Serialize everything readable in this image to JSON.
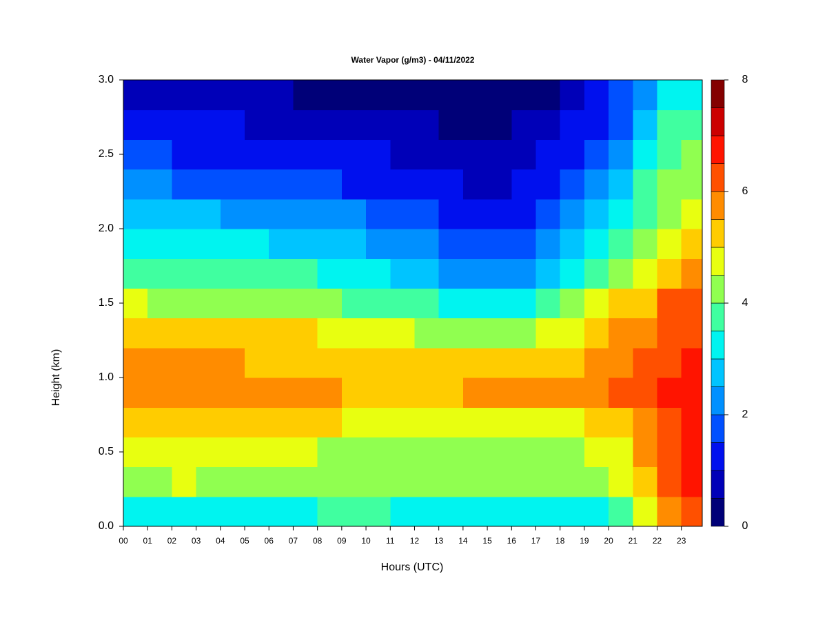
{
  "chart_data": {
    "type": "heatmap",
    "title": "Water Vapor (g/m3) - 04/11/2022",
    "x_label": "Hours (UTC)",
    "y_label": "Height (km)",
    "x": [
      0.5,
      1.5,
      2.5,
      3.5,
      4.5,
      5.5,
      6.5,
      7.5,
      8.5,
      9.5,
      10.5,
      11.5,
      12.5,
      13.5,
      14.5,
      15.5,
      16.5,
      17.5,
      18.5,
      19.5,
      20.5,
      21.5,
      22.5,
      23.5
    ],
    "y": [
      0.1,
      0.3,
      0.5,
      0.7,
      0.9,
      1.1,
      1.3,
      1.5,
      1.7,
      1.9,
      2.1,
      2.3,
      2.5,
      2.7,
      2.9
    ],
    "z": [
      [
        3.2,
        3.3,
        3.4,
        3.4,
        3.3,
        3.3,
        3.3,
        3.4,
        3.6,
        3.6,
        3.5,
        3.4,
        3.3,
        3.3,
        3.3,
        3.3,
        3.2,
        3.2,
        3.3,
        3.3,
        3.8,
        4.6,
        5.8,
        6.3
      ],
      [
        4.4,
        4.3,
        4.6,
        4.2,
        4.1,
        4.2,
        4.3,
        4.2,
        4.3,
        4.2,
        4.1,
        4.1,
        4.2,
        4.2,
        4.1,
        4.2,
        4.2,
        4.1,
        4.1,
        4.2,
        4.6,
        5.4,
        6.3,
        6.7
      ],
      [
        4.6,
        4.5,
        4.6,
        4.5,
        4.6,
        4.6,
        4.7,
        4.6,
        4.4,
        4.3,
        4.3,
        4.2,
        4.3,
        4.3,
        4.3,
        4.3,
        4.3,
        4.3,
        4.4,
        4.5,
        4.8,
        5.6,
        6.4,
        6.6
      ],
      [
        5.0,
        5.0,
        5.1,
        5.0,
        5.1,
        5.0,
        5.0,
        5.0,
        5.0,
        4.9,
        4.9,
        4.8,
        4.8,
        4.8,
        4.9,
        4.9,
        4.8,
        4.8,
        4.9,
        5.0,
        5.3,
        5.8,
        6.3,
        6.5
      ],
      [
        5.8,
        5.6,
        5.6,
        5.5,
        5.5,
        5.5,
        5.5,
        5.5,
        5.6,
        5.4,
        5.3,
        5.3,
        5.4,
        5.4,
        5.6,
        5.6,
        5.5,
        5.6,
        5.5,
        5.6,
        6.0,
        6.1,
        6.5,
        6.7
      ],
      [
        5.8,
        5.7,
        5.6,
        5.5,
        5.5,
        5.4,
        5.4,
        5.4,
        5.4,
        5.3,
        5.2,
        5.1,
        5.2,
        5.2,
        5.2,
        5.2,
        5.2,
        5.3,
        5.3,
        5.5,
        5.9,
        6.0,
        6.4,
        6.5
      ],
      [
        5.3,
        5.2,
        5.1,
        5.1,
        5.1,
        5.0,
        5.0,
        5.0,
        4.9,
        4.8,
        4.6,
        4.5,
        4.4,
        4.3,
        4.3,
        4.3,
        4.4,
        4.5,
        4.8,
        5.2,
        5.6,
        5.7,
        6.2,
        6.3
      ],
      [
        4.5,
        4.4,
        4.4,
        4.4,
        4.4,
        4.3,
        4.3,
        4.2,
        4.0,
        3.8,
        3.7,
        3.6,
        3.5,
        3.4,
        3.3,
        3.3,
        3.4,
        3.6,
        4.0,
        4.5,
        5.0,
        5.4,
        6.0,
        6.2
      ],
      [
        3.8,
        3.7,
        3.7,
        3.7,
        3.7,
        3.7,
        3.6,
        3.5,
        3.3,
        3.1,
        3.0,
        2.8,
        2.6,
        2.4,
        2.2,
        2.2,
        2.4,
        2.8,
        3.2,
        3.8,
        4.4,
        4.8,
        5.2,
        5.5
      ],
      [
        3.1,
        3.1,
        3.0,
        3.0,
        3.0,
        3.0,
        2.9,
        2.8,
        2.7,
        2.5,
        2.4,
        2.2,
        2.0,
        1.8,
        1.7,
        1.7,
        1.8,
        2.1,
        2.7,
        3.2,
        3.8,
        4.2,
        4.6,
        5.0
      ],
      [
        2.6,
        2.6,
        2.5,
        2.5,
        2.4,
        2.4,
        2.3,
        2.2,
        2.1,
        2.0,
        1.9,
        1.7,
        1.5,
        1.3,
        1.2,
        1.2,
        1.4,
        1.7,
        2.2,
        2.7,
        3.4,
        3.9,
        4.2,
        4.6
      ],
      [
        2.1,
        2.0,
        1.9,
        1.9,
        1.8,
        1.7,
        1.7,
        1.6,
        1.5,
        1.4,
        1.3,
        1.2,
        1.1,
        1.0,
        0.9,
        0.9,
        1.0,
        1.3,
        1.7,
        2.2,
        2.8,
        3.5,
        4.0,
        4.3
      ],
      [
        1.6,
        1.5,
        1.4,
        1.4,
        1.3,
        1.3,
        1.2,
        1.2,
        1.1,
        1.1,
        1.0,
        0.9,
        0.8,
        0.6,
        0.5,
        0.6,
        0.8,
        1.0,
        1.3,
        1.8,
        2.3,
        3.0,
        3.8,
        4.1
      ],
      [
        1.1,
        1.1,
        1.0,
        1.0,
        1.0,
        0.9,
        0.9,
        0.9,
        0.8,
        0.8,
        0.7,
        0.6,
        0.5,
        0.4,
        0.4,
        0.4,
        0.5,
        0.7,
        1.0,
        1.4,
        1.9,
        2.6,
        3.5,
        3.8
      ],
      [
        0.7,
        0.7,
        0.7,
        0.6,
        0.6,
        0.5,
        0.5,
        0.4,
        0.4,
        0.4,
        0.4,
        0.4,
        0.3,
        0.3,
        0.3,
        0.3,
        0.3,
        0.4,
        0.7,
        1.1,
        1.5,
        2.2,
        3.2,
        3.4
      ]
    ],
    "xlim": [
      0,
      23.86
    ],
    "xticks": [
      {
        "value": 0,
        "label": "00"
      },
      {
        "value": 1,
        "label": "01"
      },
      {
        "value": 2,
        "label": "02"
      },
      {
        "value": 3,
        "label": "03"
      },
      {
        "value": 4,
        "label": "04"
      },
      {
        "value": 5,
        "label": "05"
      },
      {
        "value": 6,
        "label": "06"
      },
      {
        "value": 7,
        "label": "07"
      },
      {
        "value": 8,
        "label": "08"
      },
      {
        "value": 9,
        "label": "09"
      },
      10,
      11,
      12,
      13,
      14,
      15,
      16,
      17,
      18,
      19,
      20,
      21,
      22,
      23
    ],
    "ylim": [
      0,
      3
    ],
    "yticks": [
      {
        "value": 0,
        "label": "0.0"
      },
      0.5,
      {
        "value": 1,
        "label": "1.0"
      },
      1.5,
      {
        "value": 2,
        "label": "2.0"
      },
      2.5,
      {
        "value": 3,
        "label": "3.0"
      }
    ],
    "levels": [
      0,
      0.5,
      1,
      1.5,
      2,
      2.5,
      3,
      3.5,
      4,
      4.5,
      5,
      5.5,
      6,
      6.5,
      7,
      7.5,
      8
    ],
    "colors": [
      "#000078",
      "#0000b8",
      "#0010ee",
      "#0050ff",
      "#0090ff",
      "#00c4ff",
      "#00f4f0",
      "#40ffa0",
      "#90ff50",
      "#e8ff10",
      "#ffcc00",
      "#ff8c00",
      "#ff5000",
      "#ff1400",
      "#cc0000",
      "#840000"
    ],
    "colorbar_ticks": [
      0,
      2,
      4,
      6,
      8
    ]
  }
}
